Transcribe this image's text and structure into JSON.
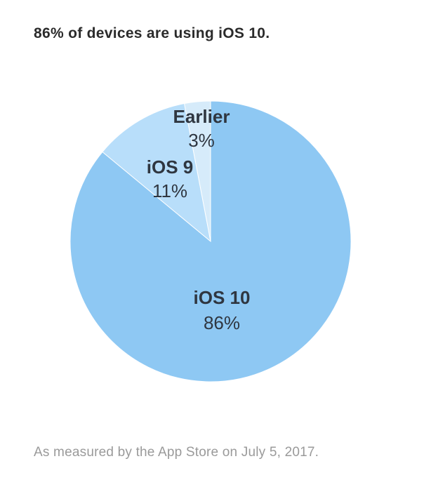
{
  "title": "86% of devices are using iOS 10.",
  "footnote": "As measured by the App Store on July 5, 2017.",
  "chart_data": {
    "type": "pie",
    "title": "86% of devices are using iOS 10.",
    "start": "12 o'clock",
    "direction": "counterclockwise",
    "slices": [
      {
        "label": "Earlier",
        "display_value": "3%",
        "value": 3,
        "color": "#d6ebfa"
      },
      {
        "label": "iOS 9",
        "display_value": "11%",
        "value": 11,
        "color": "#b8defa"
      },
      {
        "label": "iOS 10",
        "display_value": "86%",
        "value": 86,
        "color": "#8ec8f3"
      }
    ]
  }
}
